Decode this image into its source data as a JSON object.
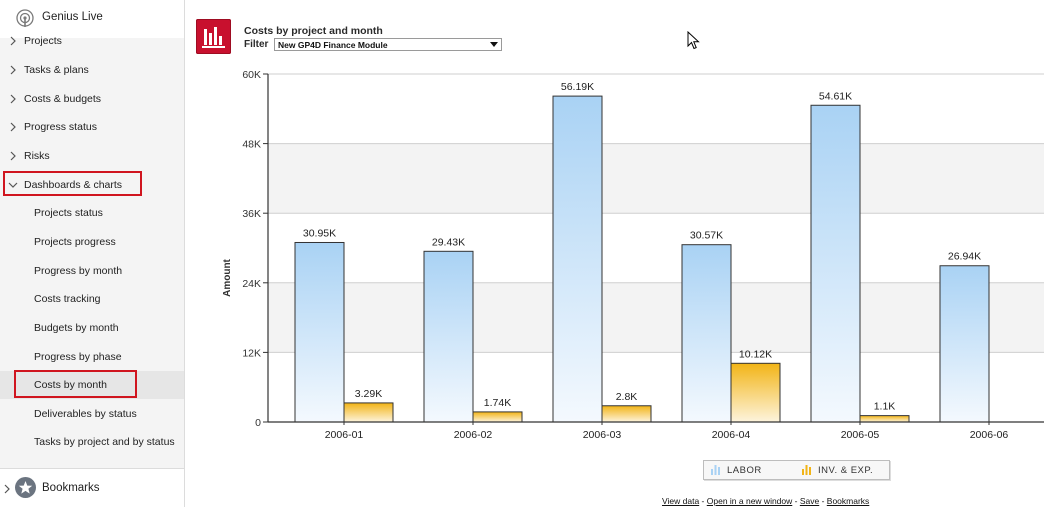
{
  "app": {
    "title": "Genius Live"
  },
  "sidebar": {
    "items": [
      {
        "label": "Projects",
        "top": 28
      },
      {
        "label": "Tasks & plans",
        "top": 56
      },
      {
        "label": "Costs & budgets",
        "top": 85
      },
      {
        "label": "Progress status",
        "top": 113
      },
      {
        "label": "Risks",
        "top": 142
      },
      {
        "label": "Dashboards & charts",
        "top": 171
      }
    ],
    "subitems": [
      {
        "label": "Projects status"
      },
      {
        "label": "Projects progress"
      },
      {
        "label": "Progress by month"
      },
      {
        "label": "Costs tracking"
      },
      {
        "label": "Budgets by month"
      },
      {
        "label": "Progress by phase"
      },
      {
        "label": "Costs by month"
      },
      {
        "label": "Deliverables by status"
      },
      {
        "label": "Tasks by project and by status"
      }
    ],
    "bookmarks_label": "Bookmarks"
  },
  "report": {
    "title": "Costs by project and month",
    "filter_label": "Filter",
    "filter_value": "New GP4D Finance Module"
  },
  "chart_data": {
    "type": "bar",
    "categories": [
      "2006-01",
      "2006-02",
      "2006-03",
      "2006-04",
      "2006-05",
      "2006-06"
    ],
    "series": [
      {
        "name": "LABOR",
        "values": [
          30950,
          29430,
          56190,
          30570,
          54610,
          26940
        ],
        "labels": [
          "30.95K",
          "29.43K",
          "56.19K",
          "30.57K",
          "54.61K",
          "26.94K"
        ],
        "color": "#a9d2f4"
      },
      {
        "name": "INV. & EXP.",
        "values": [
          3290,
          1740,
          2800,
          10120,
          1100,
          0
        ],
        "labels": [
          "3.29K",
          "1.74K",
          "2.8K",
          "10.12K",
          "1.1K",
          ""
        ],
        "color": "#f2b416"
      }
    ],
    "ylabel": "Amount",
    "ylim": [
      0,
      60000
    ],
    "yticks": [
      "0",
      "12K",
      "24K",
      "36K",
      "48K",
      "60K"
    ],
    "ytick_values": [
      0,
      12000,
      24000,
      36000,
      48000,
      60000
    ],
    "grid": true,
    "legend": "bottom"
  },
  "footer_links": {
    "view_data": "View data",
    "open_new": "Open in a new window",
    "save": "Save",
    "bookmarks": "Bookmarks",
    "sep": " - "
  }
}
